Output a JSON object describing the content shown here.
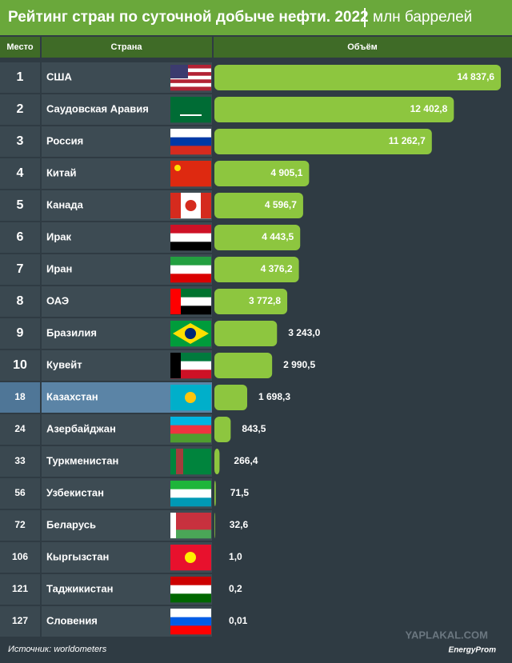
{
  "chart_data": {
    "type": "bar",
    "orientation": "horizontal",
    "title": "Рейтинг стран по суточной добыче нефти. 2022",
    "subtitle": "млн баррелей",
    "headers": [
      "Место",
      "Страна",
      "Объём"
    ],
    "ranks": [
      1,
      2,
      3,
      4,
      5,
      6,
      7,
      8,
      9,
      10,
      18,
      24,
      33,
      56,
      72,
      106,
      121,
      127
    ],
    "categories": [
      "США",
      "Саудовская Аравия",
      "Россия",
      "Китай",
      "Канада",
      "Ирак",
      "Иран",
      "ОАЭ",
      "Бразилия",
      "Кувейт",
      "Казахстан",
      "Азербайджан",
      "Туркменистан",
      "Узбекистан",
      "Беларусь",
      "Кыргызстан",
      "Таджикистан",
      "Словения"
    ],
    "values": [
      14837.6,
      12402.8,
      11262.7,
      4905.1,
      4596.7,
      4443.5,
      4376.2,
      3772.8,
      3243.0,
      2990.5,
      1698.3,
      843.5,
      266.4,
      71.5,
      32.6,
      1.0,
      0.2,
      0.01
    ],
    "value_labels": [
      "14 837,6",
      "12 402,8",
      "11 262,7",
      "4 905,1",
      "4 596,7",
      "4 443,5",
      "4 376,2",
      "3 772,8",
      "3 243,0",
      "2 990,5",
      "1 698,3",
      "843,5",
      "266,4",
      "71,5",
      "32,6",
      "1,0",
      "0,2",
      "0,01"
    ],
    "color": "#8dc63f",
    "highlight_index": 10,
    "xlim": [
      0,
      15000
    ],
    "source": "Источник: worldometers",
    "brand": "EnergyProm",
    "watermark": "YAPLAKAL.COM"
  }
}
